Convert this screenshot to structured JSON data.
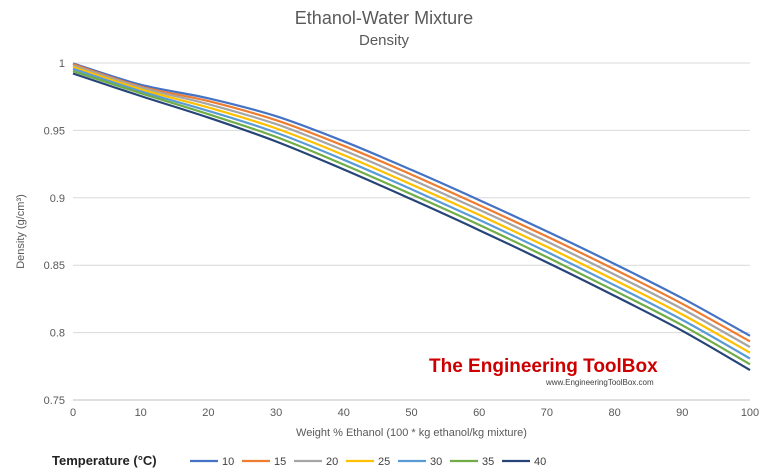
{
  "chart_data": {
    "type": "line",
    "title": "Ethanol-Water Mixture",
    "subtitle": "Density",
    "xlabel": "Weight % Ethanol  (100 * kg ethanol/kg mixture)",
    "ylabel": "Density (g/cm³)",
    "xlim": [
      0,
      100
    ],
    "ylim": [
      0.75,
      1.0
    ],
    "x_ticks": [
      "0",
      "10",
      "20",
      "30",
      "40",
      "50",
      "60",
      "70",
      "80",
      "90",
      "100"
    ],
    "y_ticks": [
      "0.75",
      "0.8",
      "0.85",
      "0.9",
      "0.95",
      "1"
    ],
    "grid": "horizontal",
    "legend_position": "bottom",
    "legend_title": "Temperature (°C)",
    "x": [
      0,
      10,
      20,
      30,
      40,
      50,
      60,
      70,
      80,
      90,
      100
    ],
    "series": [
      {
        "name": "10",
        "color": "#4472C4",
        "values": [
          0.9997,
          0.9839,
          0.9738,
          0.9605,
          0.9419,
          0.9207,
          0.8983,
          0.8751,
          0.8509,
          0.8255,
          0.7976
        ]
      },
      {
        "name": "15",
        "color": "#ED7D31",
        "values": [
          0.9991,
          0.9826,
          0.9717,
          0.9576,
          0.9386,
          0.9172,
          0.8946,
          0.8713,
          0.8469,
          0.8214,
          0.7935
        ]
      },
      {
        "name": "20",
        "color": "#A5A5A5",
        "values": [
          0.9982,
          0.9819,
          0.9694,
          0.9547,
          0.9352,
          0.9136,
          0.8911,
          0.8676,
          0.843,
          0.8175,
          0.7893
        ]
      },
      {
        "name": "25",
        "color": "#FFC000",
        "values": [
          0.997,
          0.9805,
          0.967,
          0.9515,
          0.9317,
          0.9099,
          0.8873,
          0.8637,
          0.839,
          0.8134,
          0.7851
        ]
      },
      {
        "name": "30",
        "color": "#5B9BD5",
        "values": [
          0.9957,
          0.979,
          0.9645,
          0.9484,
          0.9282,
          0.9063,
          0.8836,
          0.8599,
          0.8351,
          0.8094,
          0.7808
        ]
      },
      {
        "name": "35",
        "color": "#70AD47",
        "values": [
          0.994,
          0.9776,
          0.962,
          0.9452,
          0.9246,
          0.9026,
          0.8799,
          0.856,
          0.8311,
          0.8054,
          0.7765
        ]
      },
      {
        "name": "40",
        "color": "#264478",
        "values": [
          0.9922,
          0.9755,
          0.9595,
          0.9418,
          0.921,
          0.8989,
          0.876,
          0.8521,
          0.8272,
          0.8013,
          0.7722
        ]
      }
    ]
  },
  "watermark": {
    "main": "The Engineering ToolBox",
    "url": "www.EngineeringToolBox.com"
  }
}
